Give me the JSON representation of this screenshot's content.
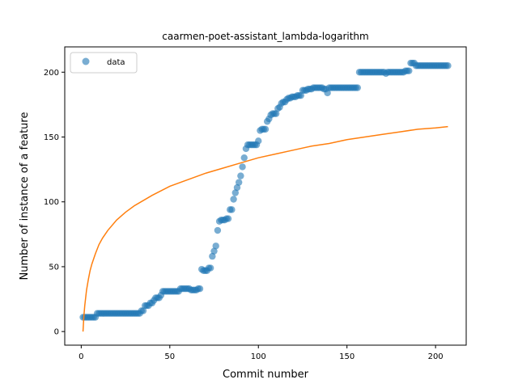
{
  "chart_data": {
    "type": "scatter",
    "title": "caarmen-poet-assistant_lambda-logarithm",
    "xlabel": "Commit number",
    "ylabel": "Number of instance of a feature",
    "xlim": [
      -9.3,
      217.3
    ],
    "ylim": [
      -10.5,
      219.5
    ],
    "xticks": [
      0,
      50,
      100,
      150,
      200
    ],
    "xtick_labels": [
      "0",
      "50",
      "100",
      "150",
      "200"
    ],
    "yticks": [
      0,
      50,
      100,
      150,
      200
    ],
    "ytick_labels": [
      "0",
      "50",
      "100",
      "150",
      "200"
    ],
    "legend": {
      "position": "top-left",
      "entries": [
        "data"
      ]
    },
    "grid": false,
    "series": [
      {
        "name": "data",
        "kind": "scatter",
        "color": "#1f77b4",
        "alpha": 0.6,
        "points": [
          [
            1,
            11
          ],
          [
            2,
            11
          ],
          [
            3,
            11
          ],
          [
            4,
            11
          ],
          [
            5,
            11
          ],
          [
            6,
            11
          ],
          [
            7,
            11
          ],
          [
            8,
            11
          ],
          [
            9,
            14
          ],
          [
            10,
            14
          ],
          [
            11,
            14
          ],
          [
            12,
            14
          ],
          [
            13,
            14
          ],
          [
            14,
            14
          ],
          [
            15,
            14
          ],
          [
            16,
            14
          ],
          [
            17,
            14
          ],
          [
            18,
            14
          ],
          [
            19,
            14
          ],
          [
            20,
            14
          ],
          [
            21,
            14
          ],
          [
            22,
            14
          ],
          [
            23,
            14
          ],
          [
            24,
            14
          ],
          [
            25,
            14
          ],
          [
            26,
            14
          ],
          [
            27,
            14
          ],
          [
            28,
            14
          ],
          [
            29,
            14
          ],
          [
            30,
            14
          ],
          [
            31,
            14
          ],
          [
            32,
            14
          ],
          [
            33,
            14
          ],
          [
            34,
            16
          ],
          [
            35,
            16
          ],
          [
            36,
            20
          ],
          [
            37,
            20
          ],
          [
            38,
            20
          ],
          [
            39,
            22
          ],
          [
            40,
            22
          ],
          [
            41,
            24
          ],
          [
            42,
            26
          ],
          [
            43,
            26
          ],
          [
            44,
            26
          ],
          [
            45,
            28
          ],
          [
            46,
            31
          ],
          [
            47,
            31
          ],
          [
            48,
            31
          ],
          [
            49,
            31
          ],
          [
            50,
            31
          ],
          [
            51,
            31
          ],
          [
            52,
            31
          ],
          [
            53,
            31
          ],
          [
            54,
            31
          ],
          [
            55,
            31
          ],
          [
            56,
            33
          ],
          [
            57,
            33
          ],
          [
            58,
            33
          ],
          [
            59,
            33
          ],
          [
            60,
            33
          ],
          [
            61,
            33
          ],
          [
            62,
            32
          ],
          [
            63,
            32
          ],
          [
            64,
            32
          ],
          [
            65,
            32
          ],
          [
            66,
            33
          ],
          [
            67,
            33
          ],
          [
            68,
            48
          ],
          [
            69,
            47
          ],
          [
            70,
            47
          ],
          [
            71,
            47
          ],
          [
            72,
            49
          ],
          [
            73,
            49
          ],
          [
            74,
            58
          ],
          [
            75,
            62
          ],
          [
            76,
            66
          ],
          [
            77,
            78
          ],
          [
            78,
            85
          ],
          [
            79,
            86
          ],
          [
            80,
            86
          ],
          [
            81,
            86
          ],
          [
            82,
            87
          ],
          [
            83,
            87
          ],
          [
            84,
            94
          ],
          [
            85,
            94
          ],
          [
            86,
            102
          ],
          [
            87,
            107
          ],
          [
            88,
            111
          ],
          [
            89,
            115
          ],
          [
            90,
            120
          ],
          [
            91,
            127
          ],
          [
            92,
            134
          ],
          [
            93,
            141
          ],
          [
            94,
            144
          ],
          [
            95,
            144
          ],
          [
            96,
            144
          ],
          [
            97,
            144
          ],
          [
            98,
            144
          ],
          [
            99,
            144
          ],
          [
            100,
            147
          ],
          [
            101,
            155
          ],
          [
            102,
            156
          ],
          [
            103,
            156
          ],
          [
            104,
            156
          ],
          [
            105,
            162
          ],
          [
            106,
            164
          ],
          [
            107,
            167
          ],
          [
            108,
            168
          ],
          [
            109,
            168
          ],
          [
            110,
            168
          ],
          [
            111,
            172
          ],
          [
            112,
            173
          ],
          [
            113,
            176
          ],
          [
            114,
            177
          ],
          [
            115,
            177
          ],
          [
            116,
            179
          ],
          [
            117,
            180
          ],
          [
            118,
            180
          ],
          [
            119,
            181
          ],
          [
            120,
            181
          ],
          [
            121,
            181
          ],
          [
            122,
            182
          ],
          [
            123,
            182
          ],
          [
            124,
            182
          ],
          [
            125,
            186
          ],
          [
            126,
            186
          ],
          [
            127,
            186
          ],
          [
            128,
            187
          ],
          [
            129,
            187
          ],
          [
            130,
            187
          ],
          [
            131,
            188
          ],
          [
            132,
            188
          ],
          [
            133,
            188
          ],
          [
            134,
            188
          ],
          [
            135,
            188
          ],
          [
            136,
            188
          ],
          [
            137,
            187
          ],
          [
            138,
            187
          ],
          [
            139,
            184
          ],
          [
            140,
            188
          ],
          [
            141,
            188
          ],
          [
            142,
            188
          ],
          [
            143,
            188
          ],
          [
            144,
            188
          ],
          [
            145,
            188
          ],
          [
            146,
            188
          ],
          [
            147,
            188
          ],
          [
            148,
            188
          ],
          [
            149,
            188
          ],
          [
            150,
            188
          ],
          [
            151,
            188
          ],
          [
            152,
            188
          ],
          [
            153,
            188
          ],
          [
            154,
            188
          ],
          [
            155,
            188
          ],
          [
            156,
            188
          ],
          [
            157,
            200
          ],
          [
            158,
            200
          ],
          [
            159,
            200
          ],
          [
            160,
            200
          ],
          [
            161,
            200
          ],
          [
            162,
            200
          ],
          [
            163,
            200
          ],
          [
            164,
            200
          ],
          [
            165,
            200
          ],
          [
            166,
            200
          ],
          [
            167,
            200
          ],
          [
            168,
            200
          ],
          [
            169,
            200
          ],
          [
            170,
            200
          ],
          [
            171,
            200
          ],
          [
            172,
            199
          ],
          [
            173,
            200
          ],
          [
            174,
            200
          ],
          [
            175,
            200
          ],
          [
            176,
            200
          ],
          [
            177,
            200
          ],
          [
            178,
            200
          ],
          [
            179,
            200
          ],
          [
            180,
            200
          ],
          [
            181,
            200
          ],
          [
            182,
            200
          ],
          [
            183,
            201
          ],
          [
            184,
            201
          ],
          [
            185,
            201
          ],
          [
            186,
            207
          ],
          [
            187,
            207
          ],
          [
            188,
            207
          ],
          [
            189,
            205
          ],
          [
            190,
            205
          ],
          [
            191,
            205
          ],
          [
            192,
            205
          ],
          [
            193,
            205
          ],
          [
            194,
            205
          ],
          [
            195,
            205
          ],
          [
            196,
            205
          ],
          [
            197,
            205
          ],
          [
            198,
            205
          ],
          [
            199,
            205
          ],
          [
            200,
            205
          ],
          [
            201,
            205
          ],
          [
            202,
            205
          ],
          [
            203,
            205
          ],
          [
            204,
            205
          ],
          [
            205,
            205
          ],
          [
            206,
            205
          ],
          [
            207,
            205
          ]
        ]
      },
      {
        "kind": "line",
        "color": "#ff7f0e",
        "points": [
          [
            1,
            0
          ],
          [
            1.5,
            12
          ],
          [
            2,
            20
          ],
          [
            3,
            32
          ],
          [
            4,
            40
          ],
          [
            5,
            47
          ],
          [
            6,
            52
          ],
          [
            8,
            60
          ],
          [
            10,
            67
          ],
          [
            12,
            72
          ],
          [
            15,
            78
          ],
          [
            20,
            86
          ],
          [
            25,
            92
          ],
          [
            30,
            97
          ],
          [
            40,
            105
          ],
          [
            50,
            112
          ],
          [
            60,
            117
          ],
          [
            70,
            122
          ],
          [
            80,
            126
          ],
          [
            90,
            130
          ],
          [
            100,
            134
          ],
          [
            110,
            137
          ],
          [
            120,
            140
          ],
          [
            130,
            143
          ],
          [
            140,
            145
          ],
          [
            150,
            148
          ],
          [
            160,
            150
          ],
          [
            170,
            152
          ],
          [
            180,
            154
          ],
          [
            190,
            156
          ],
          [
            200,
            157
          ],
          [
            207,
            158
          ]
        ]
      }
    ]
  }
}
